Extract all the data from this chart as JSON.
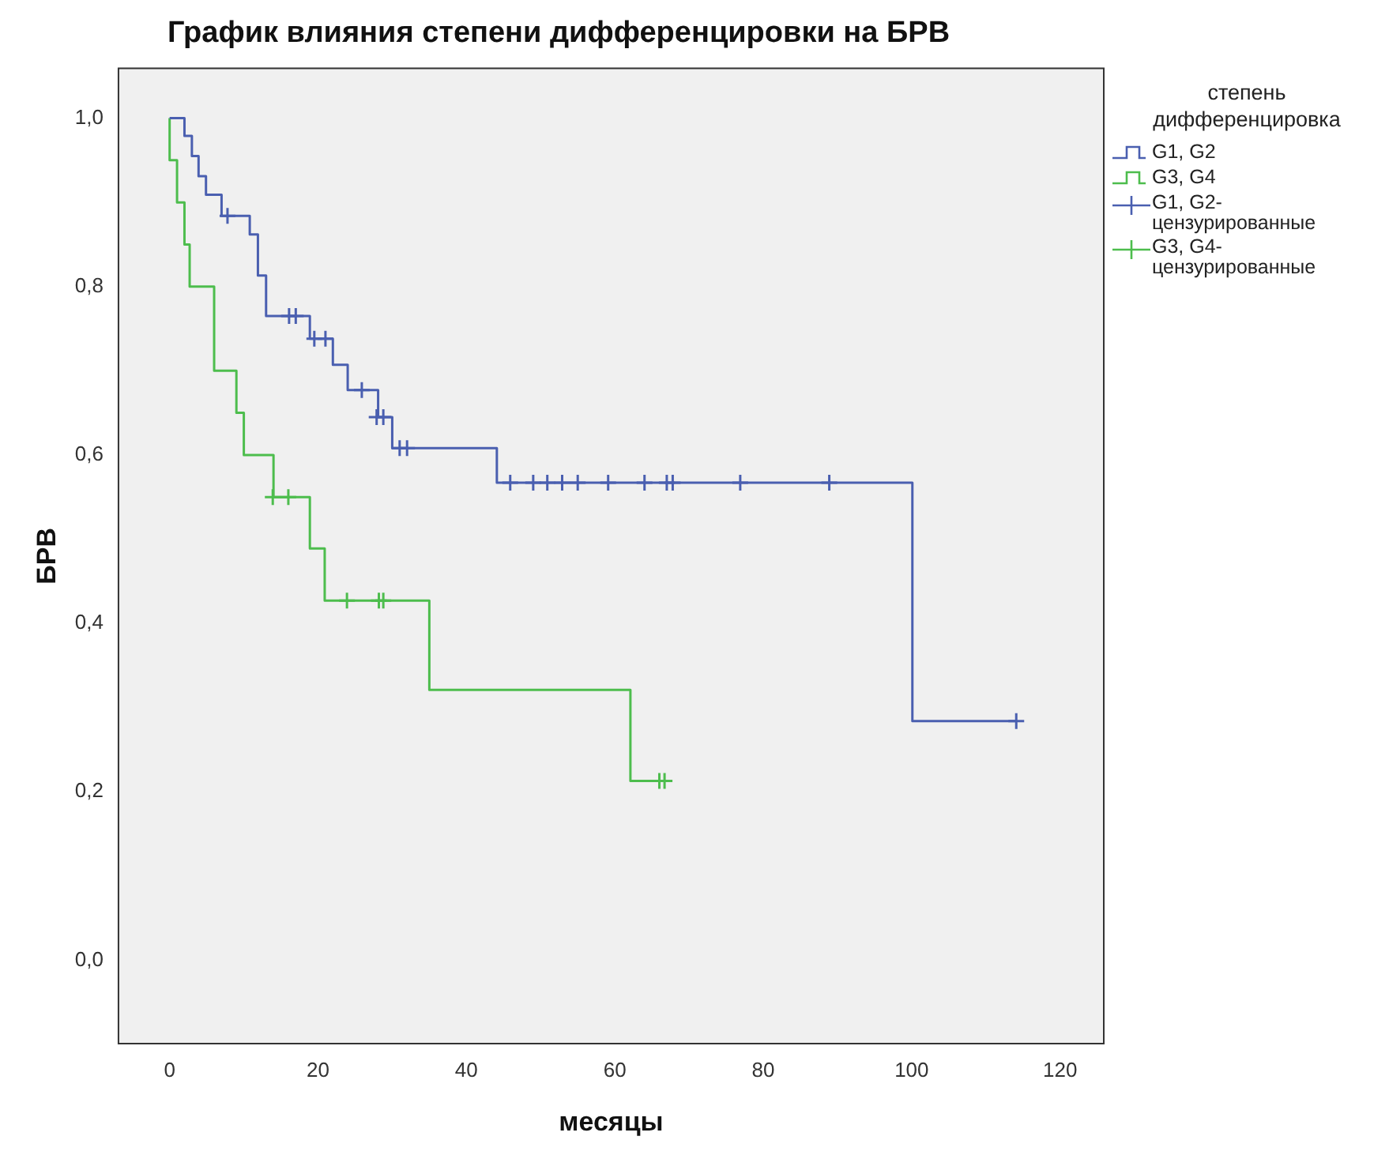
{
  "chart_data": {
    "type": "step",
    "title": "График влияния степени дифференцировки на БРВ",
    "xlabel": "месяцы",
    "ylabel": "БРВ",
    "legend_title": "степень дифференцировка",
    "legend": "right",
    "grid": false,
    "xlim": [
      -7,
      126
    ],
    "ylim": [
      -0.1,
      1.06
    ],
    "xticks": [
      0,
      20,
      40,
      60,
      80,
      100,
      120
    ],
    "yticks": [
      {
        "value": 0,
        "label": "0,0"
      },
      {
        "value": 0.2,
        "label": "0,2"
      },
      {
        "value": 0.4,
        "label": "0,4"
      },
      {
        "value": 0.6,
        "label": "0,6"
      },
      {
        "value": 0.8,
        "label": "0,8"
      },
      {
        "value": 1,
        "label": "1,0"
      }
    ],
    "series": [
      {
        "name": "G1, G2",
        "marker": "none",
        "color": "#4a5fb0",
        "x": [
          0,
          2,
          3,
          3.9,
          4.9,
          7,
          10.8,
          11.9,
          13,
          18.9,
          22,
          24,
          28.1,
          30,
          44.1,
          100.1,
          114.1
        ],
        "values": [
          1,
          0.979,
          0.955,
          0.931,
          0.909,
          0.884,
          0.862,
          0.813,
          0.765,
          0.738,
          0.707,
          0.677,
          0.645,
          0.608,
          0.567,
          0.284,
          0.284
        ]
      },
      {
        "name": "G3, G4",
        "marker": "none",
        "color": "#4dbd4d",
        "x": [
          0,
          0,
          1,
          2,
          2.7,
          6,
          9,
          10,
          14,
          18.9,
          20.9,
          35,
          62.1,
          66.7
        ],
        "values": [
          1,
          0.95,
          0.9,
          0.85,
          0.8,
          0.7,
          0.65,
          0.6,
          0.55,
          0.489,
          0.427,
          0.321,
          0.213,
          0.213
        ]
      },
      {
        "name": "G1, G2-цензурированные",
        "type": "scatter",
        "marker": "cross",
        "color": "#4a5fb0",
        "x": [
          7.8,
          16.1,
          17,
          19.5,
          21,
          25.9,
          27.9,
          28.8,
          31,
          32,
          45.9,
          49,
          50.9,
          52.9,
          55,
          59.1,
          64,
          67,
          67.8,
          76.9,
          88.9,
          114.1
        ],
        "values": [
          0.884,
          0.765,
          0.765,
          0.738,
          0.738,
          0.677,
          0.645,
          0.645,
          0.608,
          0.608,
          0.567,
          0.567,
          0.567,
          0.567,
          0.567,
          0.567,
          0.567,
          0.567,
          0.567,
          0.567,
          0.567,
          0.284
        ]
      },
      {
        "name": "G3, G4-цензурированные",
        "type": "scatter",
        "marker": "cross",
        "color": "#4dbd4d",
        "x": [
          13.9,
          16,
          23.9,
          28.2,
          28.8,
          66,
          66.7
        ],
        "values": [
          0.55,
          0.55,
          0.427,
          0.427,
          0.427,
          0.213,
          0.213
        ]
      }
    ]
  }
}
